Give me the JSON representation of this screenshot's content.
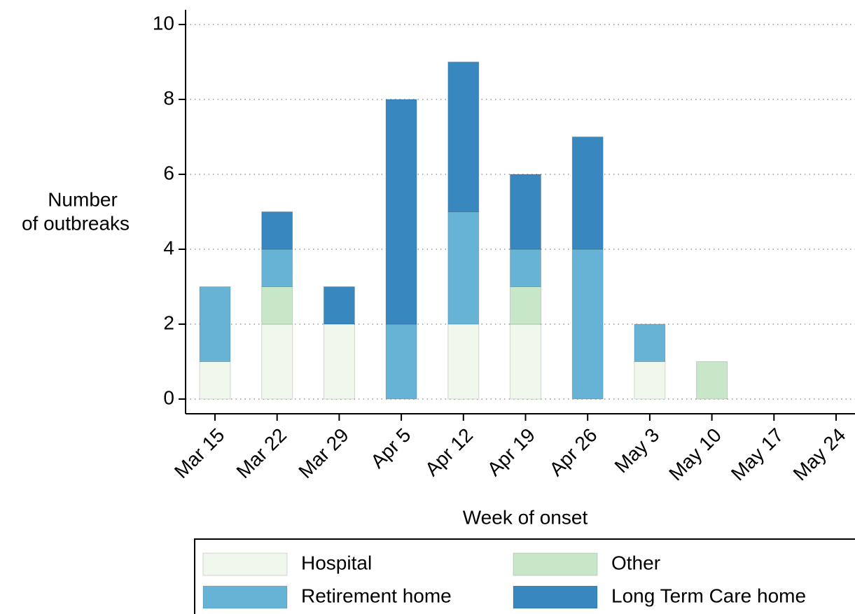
{
  "chart_data": {
    "type": "bar",
    "stacked": true,
    "xlabel": "Week of onset",
    "ylabel": [
      "Number",
      "of outbreaks"
    ],
    "categories": [
      "Mar 15",
      "Mar 22",
      "Mar 29",
      "Apr 5",
      "Apr 12",
      "Apr 19",
      "Apr 26",
      "May 3",
      "May 10",
      "May 17",
      "May 24"
    ],
    "series": [
      {
        "name": "Hospital",
        "color": "#f0f7ec",
        "values": [
          1,
          2,
          2,
          0,
          2,
          2,
          0,
          1,
          0,
          0,
          0
        ]
      },
      {
        "name": "Other",
        "color": "#c7e7c8",
        "values": [
          0,
          1,
          0,
          0,
          0,
          1,
          0,
          0,
          1,
          0,
          0
        ]
      },
      {
        "name": "Retirement home",
        "color": "#67b3d6",
        "values": [
          2,
          1,
          0,
          2,
          3,
          1,
          4,
          1,
          0,
          0,
          0
        ]
      },
      {
        "name": "Long Term Care home",
        "color": "#3987bf",
        "values": [
          0,
          1,
          1,
          6,
          4,
          2,
          3,
          0,
          0,
          0,
          0
        ]
      }
    ],
    "ylim": [
      0,
      10
    ],
    "yticks": [
      0,
      2,
      4,
      6,
      8,
      10
    ],
    "grid": true
  }
}
